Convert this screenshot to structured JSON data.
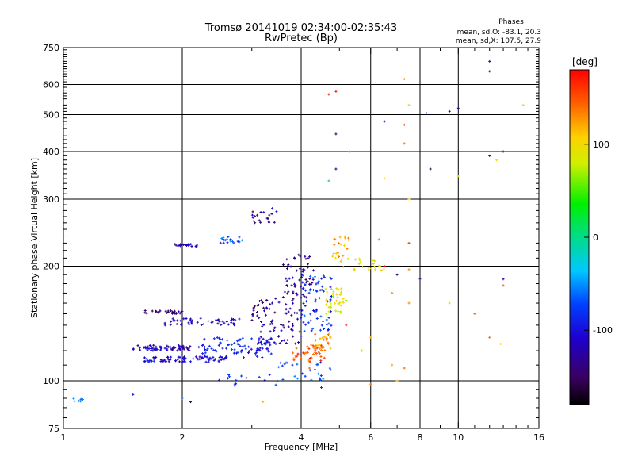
{
  "chart_data": {
    "type": "scatter",
    "title": "Tromsø 20141019 02:34:00-02:35:43",
    "subtitle": "RwPretec (Bp)",
    "xlabel": "Frequency [MHz]",
    "ylabel": "Stationary phase Virtual Height [km]",
    "x_scale": "log",
    "y_scale": "log",
    "xlim": [
      1,
      16
    ],
    "ylim": [
      75,
      750
    ],
    "x_ticks": [
      1,
      2,
      4,
      6,
      8,
      10,
      16
    ],
    "y_ticks": [
      75,
      100,
      200,
      300,
      400,
      500,
      600,
      750
    ],
    "grid": true,
    "annotation": {
      "heading": "Phases",
      "line1": "mean, sd,O: -83.1, 20.3",
      "line2": "mean, sd,X: 107.5, 27.9"
    },
    "colorbar": {
      "label": "[deg]",
      "range": [
        -180,
        180
      ],
      "ticks": [
        100,
        0,
        -100
      ],
      "colormap": "rainbow (black-purple-blue-cyan-green-yellow-orange-red)"
    },
    "clusters": [
      {
        "f": [
          1.05,
          1.12
        ],
        "h": [
          88,
          90
        ],
        "n": 6,
        "phase": -60
      },
      {
        "f": [
          1.5,
          2.1
        ],
        "h": [
          120,
          124
        ],
        "n": 70,
        "phase": -120
      },
      {
        "f": [
          1.6,
          2.6
        ],
        "h": [
          112,
          116
        ],
        "n": 80,
        "phase": -110
      },
      {
        "f": [
          1.6,
          2.0
        ],
        "h": [
          150,
          153
        ],
        "n": 30,
        "phase": -140
      },
      {
        "f": [
          1.8,
          2.8
        ],
        "h": [
          140,
          146
        ],
        "n": 50,
        "phase": -120
      },
      {
        "f": [
          1.9,
          2.2
        ],
        "h": [
          225,
          229
        ],
        "n": 22,
        "phase": -110
      },
      {
        "f": [
          2.5,
          2.9
        ],
        "h": [
          230,
          240
        ],
        "n": 18,
        "phase": -70
      },
      {
        "f": [
          3.0,
          3.5
        ],
        "h": [
          255,
          285
        ],
        "n": 20,
        "phase": -130
      },
      {
        "f": [
          2.2,
          3.4
        ],
        "h": [
          115,
          130
        ],
        "n": 90,
        "phase": -90
      },
      {
        "f": [
          3.0,
          4.0
        ],
        "h": [
          125,
          165
        ],
        "n": 90,
        "phase": -130
      },
      {
        "f": [
          3.6,
          4.3
        ],
        "h": [
          165,
          215
        ],
        "n": 60,
        "phase": -130
      },
      {
        "f": [
          4.0,
          4.8
        ],
        "h": [
          135,
          190
        ],
        "n": 70,
        "phase": -80
      },
      {
        "f": [
          3.8,
          4.6
        ],
        "h": [
          112,
          125
        ],
        "n": 40,
        "phase": 150
      },
      {
        "f": [
          4.3,
          4.8
        ],
        "h": [
          120,
          135
        ],
        "n": 25,
        "phase": 130
      },
      {
        "f": [
          4.6,
          5.2
        ],
        "h": [
          150,
          175
        ],
        "n": 40,
        "phase": 90
      },
      {
        "f": [
          4.8,
          5.3
        ],
        "h": [
          210,
          240
        ],
        "n": 20,
        "phase": 120
      },
      {
        "f": [
          5.0,
          6.5
        ],
        "h": [
          195,
          210
        ],
        "n": 25,
        "phase": 100
      },
      {
        "f": [
          3.5,
          4.8
        ],
        "h": [
          100,
          112
        ],
        "n": 25,
        "phase": -70
      },
      {
        "f": [
          2.4,
          3.5
        ],
        "h": [
          96,
          104
        ],
        "n": 15,
        "phase": -90
      }
    ],
    "sparse_points": [
      [
        4.7,
        565,
        170
      ],
      [
        4.9,
        575,
        170
      ],
      [
        4.9,
        445,
        -140
      ],
      [
        5.3,
        400,
        170
      ],
      [
        4.9,
        360,
        -130
      ],
      [
        4.7,
        335,
        -20
      ],
      [
        6.5,
        480,
        -110
      ],
      [
        7.3,
        470,
        150
      ],
      [
        7.5,
        530,
        110
      ],
      [
        7.3,
        620,
        130
      ],
      [
        7.3,
        420,
        140
      ],
      [
        8.3,
        505,
        -70
      ],
      [
        9.5,
        510,
        -140
      ],
      [
        10.0,
        520,
        -130
      ],
      [
        12.0,
        690,
        -130
      ],
      [
        12.0,
        650,
        -100
      ],
      [
        14.6,
        530,
        100
      ],
      [
        12.5,
        380,
        100
      ],
      [
        12.0,
        390,
        -150
      ],
      [
        13.0,
        400,
        -150
      ],
      [
        10.0,
        345,
        100
      ],
      [
        8.5,
        360,
        -160
      ],
      [
        6.5,
        340,
        110
      ],
      [
        7.5,
        300,
        100
      ],
      [
        7.5,
        230,
        160
      ],
      [
        7.0,
        190,
        -140
      ],
      [
        8.0,
        185,
        -130
      ],
      [
        13.0,
        185,
        -120
      ],
      [
        13.0,
        178,
        150
      ],
      [
        9.5,
        160,
        100
      ],
      [
        11.0,
        150,
        140
      ],
      [
        7.5,
        160,
        130
      ],
      [
        6.8,
        170,
        130
      ],
      [
        5.2,
        140,
        180
      ],
      [
        6.0,
        130,
        120
      ],
      [
        6.8,
        110,
        120
      ],
      [
        7.3,
        108,
        140
      ],
      [
        12.0,
        130,
        140
      ],
      [
        12.8,
        125,
        110
      ],
      [
        5.7,
        120,
        70
      ],
      [
        6.0,
        98,
        140
      ],
      [
        7.0,
        100,
        120
      ],
      [
        2.0,
        90,
        -60
      ],
      [
        2.1,
        88,
        -160
      ],
      [
        1.5,
        92,
        -90
      ],
      [
        3.2,
        88,
        120
      ],
      [
        3.8,
        110,
        -90
      ],
      [
        4.2,
        108,
        140
      ],
      [
        4.5,
        96,
        -80
      ],
      [
        6.3,
        235,
        -20
      ],
      [
        7.5,
        196,
        130
      ],
      [
        6.5,
        200,
        180
      ]
    ]
  }
}
